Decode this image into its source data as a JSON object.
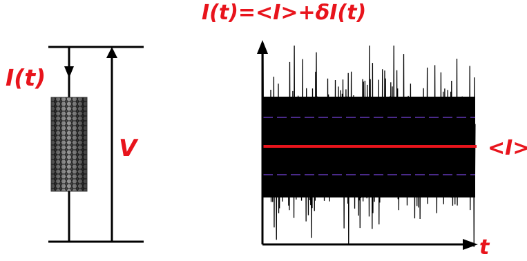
{
  "colors": {
    "label": "#e8141c",
    "mean_line": "#e8141c",
    "dashed_line": "#4a2a8a",
    "noise": "#000000",
    "wire": "#000000",
    "nanotube": "#6e6e6e"
  },
  "labels": {
    "equation": "I(t)=<I>+δI(t)",
    "current": "I(t)",
    "voltage": "V",
    "mean": "<I>",
    "time_axis": "t"
  },
  "icons": {
    "nanotube": "carbon-nanotube-icon"
  }
}
